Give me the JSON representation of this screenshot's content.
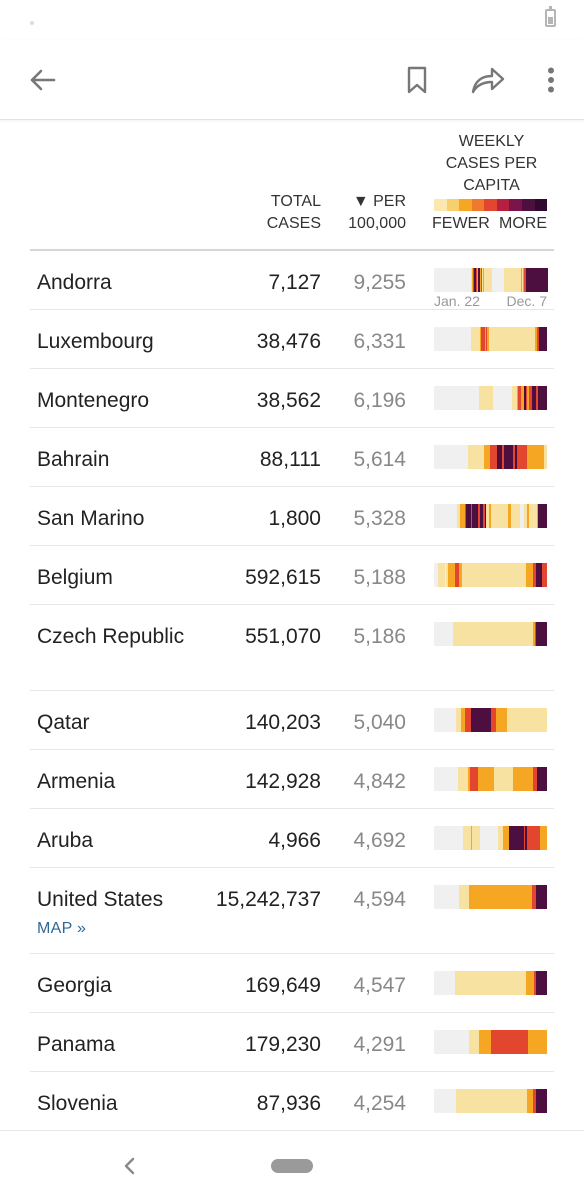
{
  "toolbar": {
    "back_icon": "arrow-left-icon",
    "bookmark_icon": "bookmark-icon",
    "share_icon": "share-arrow-icon",
    "more_icon": "more-vertical-icon"
  },
  "table": {
    "headers": {
      "total_line1": "TOTAL",
      "total_line2": "CASES",
      "per_line1": "▼ PER",
      "per_line2": "100,000",
      "weekly_line1": "WEEKLY",
      "weekly_line2": "CASES PER",
      "weekly_line3": "CAPITA",
      "legend_fewer": "FEWER",
      "legend_more": "MORE"
    },
    "date_start": "Jan. 22",
    "date_end": "Dec. 7",
    "rows": [
      {
        "country": "Andorra",
        "total": "7,127",
        "per": "9,255",
        "pattern": "0000000000000000000000000000000000001234432442312111111110000000000001111111111111111121233444444444444444444444"
      },
      {
        "country": "Luxembourg",
        "total": "38,476",
        "per": "6,331",
        "pattern": "0000000000000000000000000000000111111123332322111111111111111111111111111111111111112234444444"
      },
      {
        "country": "Montenegro",
        "total": "38,562",
        "per": "6,196",
        "pattern": "000000000000000000000000000000111111111000000000000011123322432334443444444"
      },
      {
        "country": "Bahrain",
        "total": "88,111",
        "per": "5,614",
        "pattern": "000000000000000000011111111122233334443444443433333322222222211"
      },
      {
        "country": "San Marino",
        "total": "1,800",
        "per": "5,328",
        "pattern": "00000000000000011222344434444344341121111111111122111111000112111112444444"
      },
      {
        "country": "Belgium",
        "total": "592,615",
        "per": "5,188",
        "pattern": "0011110122223322111111111111111111111111111111111111222233444333"
      },
      {
        "country": "Czech Republic",
        "total": "551,070",
        "per": "5,186",
        "pattern": "0000000000011111111111111111111111111111111111111111111123444444"
      },
      {
        "country": "Qatar",
        "total": "140,203",
        "per": "5,040",
        "pattern": "00000000000011122333444444444443332222221111111111111111111111"
      },
      {
        "country": "Armenia",
        "total": "142,928",
        "per": "4,842",
        "pattern": "000000000000111112333322222222111111111122222222223344444"
      },
      {
        "country": "Aruba",
        "total": "4,966",
        "per": "4,692",
        "pattern": "00000000000000001111211110000000000111222444444443433333332222"
      },
      {
        "country": "United States",
        "total": "15,242,737",
        "per": "4,594",
        "map": "MAP »",
        "pattern": "0000000000001111122222222222222222222222222222223344444"
      },
      {
        "country": "Georgia",
        "total": "169,649",
        "per": "4,547",
        "pattern": "00000000000111111111111111111111111111111111111122223444444"
      },
      {
        "country": "Panama",
        "total": "179,230",
        "per": "4,291",
        "pattern": "0000000000000000001111122222233333333333333333332222222222"
      },
      {
        "country": "Slovenia",
        "total": "87,936",
        "per": "4,254",
        "pattern": "000000000000111111111111111111111111111111111111111122233444444"
      }
    ]
  },
  "colors": {
    "level0": "#f0f0f0",
    "level1": "#f7e2a1",
    "level2": "#f5a623",
    "level3": "#e2462e",
    "level4": "#4d0e40",
    "legend": [
      "#fae8b0",
      "#f7cf6e",
      "#f5a623",
      "#ef7a2d",
      "#e2462e",
      "#b61f3f",
      "#7b144a",
      "#4d0e40",
      "#2f0a2e"
    ]
  },
  "navbar": {
    "back_icon": "chevron-left-icon",
    "home_icon": "home-pill-icon"
  }
}
